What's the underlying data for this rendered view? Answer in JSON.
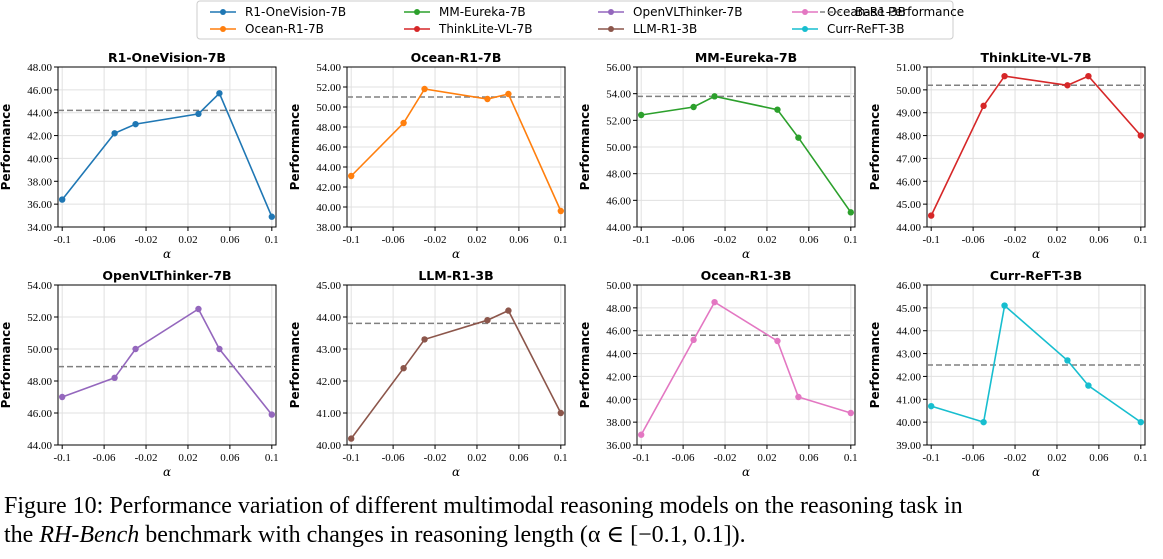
{
  "legend": {
    "entries": [
      {
        "label": "R1-OneVision-7B",
        "color": "#1f77b4",
        "style": "line-marker"
      },
      {
        "label": "MM-Eureka-7B",
        "color": "#2ca02c",
        "style": "line-marker"
      },
      {
        "label": "OpenVLThinker-7B",
        "color": "#9467bd",
        "style": "line-marker"
      },
      {
        "label": "Ocean-R1-3B",
        "color": "#e377c2",
        "style": "line-marker"
      },
      {
        "label": "Base Performance",
        "color": "#808080",
        "style": "dashed"
      },
      {
        "label": "Ocean-R1-7B",
        "color": "#ff7f0e",
        "style": "line-marker"
      },
      {
        "label": "ThinkLite-VL-7B",
        "color": "#d62728",
        "style": "line-marker"
      },
      {
        "label": "LLM-R1-3B",
        "color": "#8c564b",
        "style": "line-marker"
      },
      {
        "label": "Curr-ReFT-3B",
        "color": "#17becf",
        "style": "line-marker"
      }
    ]
  },
  "chart_data": [
    {
      "type": "line",
      "title": "R1-OneVision-7B",
      "xlabel": "α",
      "ylabel": "Performance",
      "color": "#1f77b4",
      "x": [
        -0.1,
        -0.05,
        -0.03,
        0.03,
        0.05,
        0.1
      ],
      "y": [
        36.4,
        42.2,
        43.0,
        43.9,
        45.7,
        34.9
      ],
      "baseline": 44.2,
      "ylim": [
        34,
        48
      ],
      "yticks": [
        "34.00",
        "36.00",
        "38.00",
        "40.00",
        "42.00",
        "44.00",
        "46.00",
        "48.00"
      ],
      "xticks": [
        "-0.1",
        "-0.06",
        "-0.02",
        "0.02",
        "0.06",
        "0.1"
      ]
    },
    {
      "type": "line",
      "title": "Ocean-R1-7B",
      "xlabel": "α",
      "ylabel": "Performance",
      "color": "#ff7f0e",
      "x": [
        -0.1,
        -0.05,
        -0.03,
        0.03,
        0.05,
        0.1
      ],
      "y": [
        43.1,
        48.4,
        51.8,
        50.8,
        51.3,
        39.6
      ],
      "baseline": 51.0,
      "ylim": [
        38,
        54
      ],
      "yticks": [
        "38.00",
        "40.00",
        "42.00",
        "44.00",
        "46.00",
        "48.00",
        "50.00",
        "52.00",
        "54.00"
      ],
      "xticks": [
        "-0.1",
        "-0.06",
        "-0.02",
        "0.02",
        "0.06",
        "0.1"
      ]
    },
    {
      "type": "line",
      "title": "MM-Eureka-7B",
      "xlabel": "α",
      "ylabel": "Performance",
      "color": "#2ca02c",
      "x": [
        -0.1,
        -0.05,
        -0.03,
        0.03,
        0.05,
        0.1
      ],
      "y": [
        52.4,
        53.0,
        53.8,
        52.8,
        50.7,
        45.1
      ],
      "baseline": 53.8,
      "ylim": [
        44,
        56
      ],
      "yticks": [
        "44.00",
        "46.00",
        "48.00",
        "50.00",
        "52.00",
        "54.00",
        "56.00"
      ],
      "xticks": [
        "-0.1",
        "-0.06",
        "-0.02",
        "0.02",
        "0.06",
        "0.1"
      ]
    },
    {
      "type": "line",
      "title": "ThinkLite-VL-7B",
      "xlabel": "α",
      "ylabel": "Performance",
      "color": "#d62728",
      "x": [
        -0.1,
        -0.05,
        -0.03,
        0.03,
        0.05,
        0.1
      ],
      "y": [
        44.5,
        49.3,
        50.6,
        50.2,
        50.6,
        48.0
      ],
      "baseline": 50.2,
      "ylim": [
        44,
        51
      ],
      "yticks": [
        "44.00",
        "45.00",
        "46.00",
        "47.00",
        "48.00",
        "49.00",
        "50.00",
        "51.00"
      ],
      "xticks": [
        "-0.1",
        "-0.06",
        "-0.02",
        "0.02",
        "0.06",
        "0.1"
      ]
    },
    {
      "type": "line",
      "title": "OpenVLThinker-7B",
      "xlabel": "α",
      "ylabel": "Performance",
      "color": "#9467bd",
      "x": [
        -0.1,
        -0.05,
        -0.03,
        0.03,
        0.05,
        0.1
      ],
      "y": [
        47.0,
        48.2,
        50.0,
        52.5,
        50.0,
        45.9
      ],
      "baseline": 48.9,
      "ylim": [
        44,
        54
      ],
      "yticks": [
        "44.00",
        "46.00",
        "48.00",
        "50.00",
        "52.00",
        "54.00"
      ],
      "xticks": [
        "-0.1",
        "-0.06",
        "-0.02",
        "0.02",
        "0.06",
        "0.1"
      ]
    },
    {
      "type": "line",
      "title": "LLM-R1-3B",
      "xlabel": "α",
      "ylabel": "Performance",
      "color": "#8c564b",
      "x": [
        -0.1,
        -0.05,
        -0.03,
        0.03,
        0.05,
        0.1
      ],
      "y": [
        40.2,
        42.4,
        43.3,
        43.9,
        44.2,
        41.0
      ],
      "baseline": 43.8,
      "ylim": [
        40,
        45
      ],
      "yticks": [
        "40.00",
        "41.00",
        "42.00",
        "43.00",
        "44.00",
        "45.00"
      ],
      "xticks": [
        "-0.1",
        "-0.06",
        "-0.02",
        "0.02",
        "0.06",
        "0.1"
      ]
    },
    {
      "type": "line",
      "title": "Ocean-R1-3B",
      "xlabel": "α",
      "ylabel": "Performance",
      "color": "#e377c2",
      "x": [
        -0.1,
        -0.05,
        -0.03,
        0.03,
        0.05,
        0.1
      ],
      "y": [
        36.9,
        45.2,
        48.5,
        45.1,
        40.2,
        38.8
      ],
      "baseline": 45.6,
      "ylim": [
        36,
        50
      ],
      "yticks": [
        "36.00",
        "38.00",
        "40.00",
        "42.00",
        "44.00",
        "46.00",
        "48.00",
        "50.00"
      ],
      "xticks": [
        "-0.1",
        "-0.06",
        "-0.02",
        "0.02",
        "0.06",
        "0.1"
      ]
    },
    {
      "type": "line",
      "title": "Curr-ReFT-3B",
      "xlabel": "α",
      "ylabel": "Performance",
      "color": "#17becf",
      "x": [
        -0.1,
        -0.05,
        -0.03,
        0.03,
        0.05,
        0.1
      ],
      "y": [
        40.7,
        40.0,
        45.1,
        42.7,
        41.6,
        40.0
      ],
      "baseline": 42.5,
      "ylim": [
        39,
        46
      ],
      "yticks": [
        "39.00",
        "40.00",
        "41.00",
        "42.00",
        "43.00",
        "44.00",
        "45.00",
        "46.00"
      ],
      "xticks": [
        "-0.1",
        "-0.06",
        "-0.02",
        "0.02",
        "0.06",
        "0.1"
      ]
    }
  ],
  "caption": {
    "line1": "Figure 10: Performance variation of different multimodal reasoning models on the reasoning task in",
    "line2_pre": "the ",
    "line2_em": "RH-Bench",
    "line2_post": " benchmark with changes in reasoning length (α ∈ [−0.1, 0.1])."
  }
}
